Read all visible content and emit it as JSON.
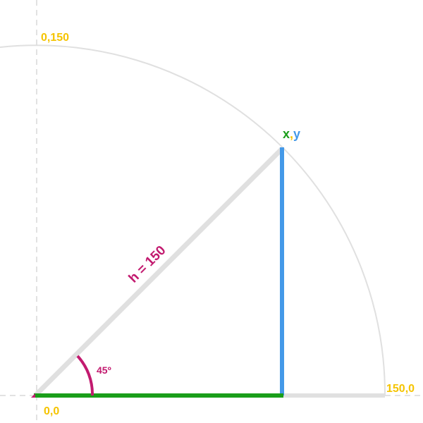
{
  "labels": {
    "origin": "0,0",
    "y_axis_point": "0,150",
    "x_axis_point": "150,0",
    "point_x": "x",
    "point_comma": ",",
    "point_y": "y",
    "hypotenuse": "h = 150",
    "angle": "45º"
  },
  "colors": {
    "axis_label": "#f5c400",
    "hypotenuse_label": "#c21a6f",
    "hypotenuse_line": "#e0e0e0",
    "x_leg": "#1a9e1a",
    "y_leg": "#4499e8",
    "arc_circle": "#e0e0e0",
    "angle_arc": "#c21a6f",
    "dashed_axes": "#d8d8d8"
  }
}
